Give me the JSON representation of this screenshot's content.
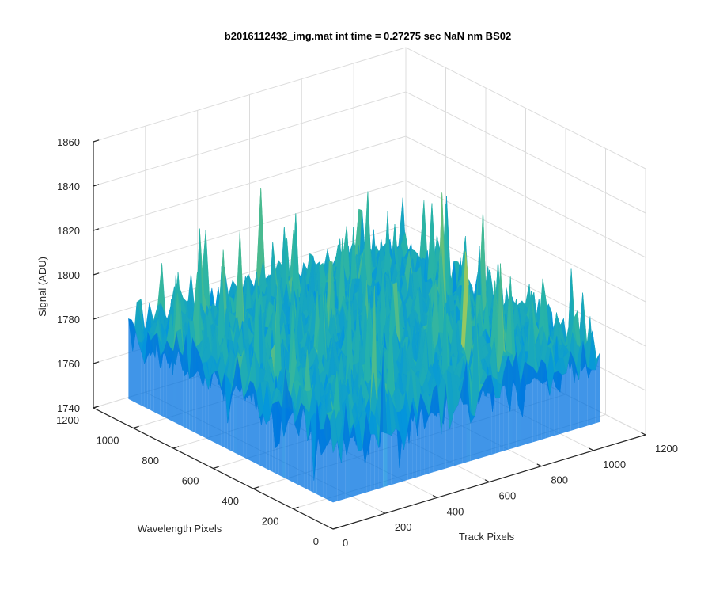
{
  "chart_data": {
    "type": "surface",
    "title": "b2016112432_img.mat int time = 0.27275 sec  NaN nm BS02",
    "xlabel": "Track Pixels",
    "ylabel": "Wavelength Pixels",
    "zlabel": "Signal (ADU)",
    "xlim": [
      0,
      1200
    ],
    "ylim": [
      0,
      1200
    ],
    "zlim": [
      1740,
      1860
    ],
    "xticks": [
      "0",
      "200",
      "400",
      "600",
      "800",
      "1000",
      "1200"
    ],
    "yticks": [
      "0",
      "200",
      "400",
      "600",
      "800",
      "1000",
      "1200"
    ],
    "zticks": [
      "1740",
      "1760",
      "1780",
      "1800",
      "1820",
      "1840",
      "1860"
    ],
    "grid": true,
    "colormap": "parula",
    "surface_extent": {
      "track_pixels": [
        0,
        1024
      ],
      "wavelength_pixels": [
        0,
        1024
      ]
    },
    "signal_mean": 1783,
    "signal_range": [
      1750,
      1850
    ],
    "colors": {
      "low": "#0072e0",
      "mid": "#27b3a8",
      "high": "#d8d140"
    }
  }
}
